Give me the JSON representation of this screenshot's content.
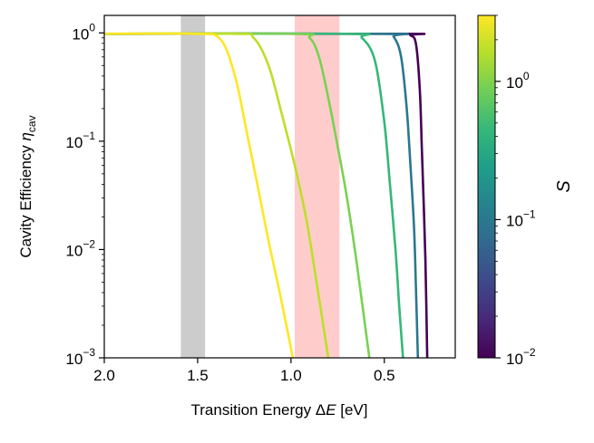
{
  "chart_data": {
    "type": "line",
    "x_axis": {
      "label_prefix": "Transition Energy Δ",
      "label_var": "E",
      "label_suffix": " [eV]",
      "scale": "linear",
      "inverted": true,
      "lim": [
        2.0,
        0.12
      ],
      "ticks": [
        {
          "value": 2.0,
          "label": "2.0"
        },
        {
          "value": 1.5,
          "label": "1.5"
        },
        {
          "value": 1.0,
          "label": "1.0"
        },
        {
          "value": 0.5,
          "label": "0.5"
        }
      ]
    },
    "y_axis": {
      "label_main": "Cavity Efficiency ",
      "label_var": "η",
      "label_sub": "cav",
      "scale": "log",
      "lim": [
        0.001,
        1.45
      ],
      "ticks": [
        {
          "value": 1,
          "base": "10",
          "exp": "0"
        },
        {
          "value": 0.1,
          "base": "10",
          "exp": "−1"
        },
        {
          "value": 0.01,
          "base": "10",
          "exp": "−2"
        },
        {
          "value": 0.001,
          "base": "10",
          "exp": "−3"
        }
      ]
    },
    "shaded_bands": [
      {
        "name": "gray-band",
        "x_from": 1.59,
        "x_to": 1.46,
        "color": "#cccccc"
      },
      {
        "name": "red-band",
        "x_from": 0.98,
        "x_to": 0.74,
        "color": "#ffcccc"
      }
    ],
    "series": [
      {
        "name": "S = 0.01",
        "color": "#440154",
        "x": [
          2.0,
          0.42,
          0.36,
          0.33,
          0.31,
          0.3,
          0.29,
          0.28,
          0.27
        ],
        "y": [
          0.98,
          0.98,
          0.95,
          0.78,
          0.3,
          0.1,
          0.03,
          0.008,
          0.001
        ]
      },
      {
        "name": "S = 0.03",
        "color": "#2a788e",
        "x": [
          2.0,
          0.5,
          0.45,
          0.41,
          0.38,
          0.36,
          0.34,
          0.33,
          0.32
        ],
        "y": [
          0.98,
          0.98,
          0.92,
          0.6,
          0.2,
          0.06,
          0.015,
          0.004,
          0.001
        ]
      },
      {
        "name": "S = 0.1",
        "color": "#35b779",
        "x": [
          2.0,
          0.7,
          0.62,
          0.55,
          0.5,
          0.47,
          0.44,
          0.42,
          0.4
        ],
        "y": [
          0.98,
          0.98,
          0.9,
          0.55,
          0.15,
          0.04,
          0.01,
          0.003,
          0.001
        ]
      },
      {
        "name": "S = 0.3",
        "color": "#7ad151",
        "x": [
          2.0,
          0.98,
          0.9,
          0.85,
          0.8,
          0.75,
          0.7,
          0.65,
          0.58
        ],
        "y": [
          0.98,
          0.98,
          0.9,
          0.6,
          0.25,
          0.09,
          0.03,
          0.008,
          0.001
        ]
      },
      {
        "name": "S = 1",
        "color": "#bddf26",
        "x": [
          2.0,
          1.3,
          1.2,
          1.12,
          1.05,
          0.98,
          0.92,
          0.87,
          0.8
        ],
        "y": [
          0.98,
          0.98,
          0.9,
          0.5,
          0.18,
          0.06,
          0.02,
          0.006,
          0.001
        ]
      },
      {
        "name": "S = 3",
        "color": "#fde725",
        "x": [
          2.0,
          1.52,
          1.38,
          1.3,
          1.24,
          1.18,
          1.12,
          1.06,
          0.99
        ],
        "y": [
          0.98,
          0.98,
          0.88,
          0.4,
          0.13,
          0.04,
          0.012,
          0.004,
          0.001
        ]
      }
    ],
    "colorbar": {
      "label": "S",
      "scale": "log",
      "range": [
        0.01,
        3
      ],
      "colormap": [
        "#440154",
        "#482878",
        "#3e4989",
        "#31688e",
        "#26828e",
        "#1f9e89",
        "#35b779",
        "#6ece58",
        "#b5de2b",
        "#fde725"
      ],
      "ticks": [
        {
          "value": 1,
          "base": "10",
          "exp": "0"
        },
        {
          "value": 0.1,
          "base": "10",
          "exp": "−1"
        },
        {
          "value": 0.01,
          "base": "10",
          "exp": "−2"
        }
      ]
    }
  }
}
